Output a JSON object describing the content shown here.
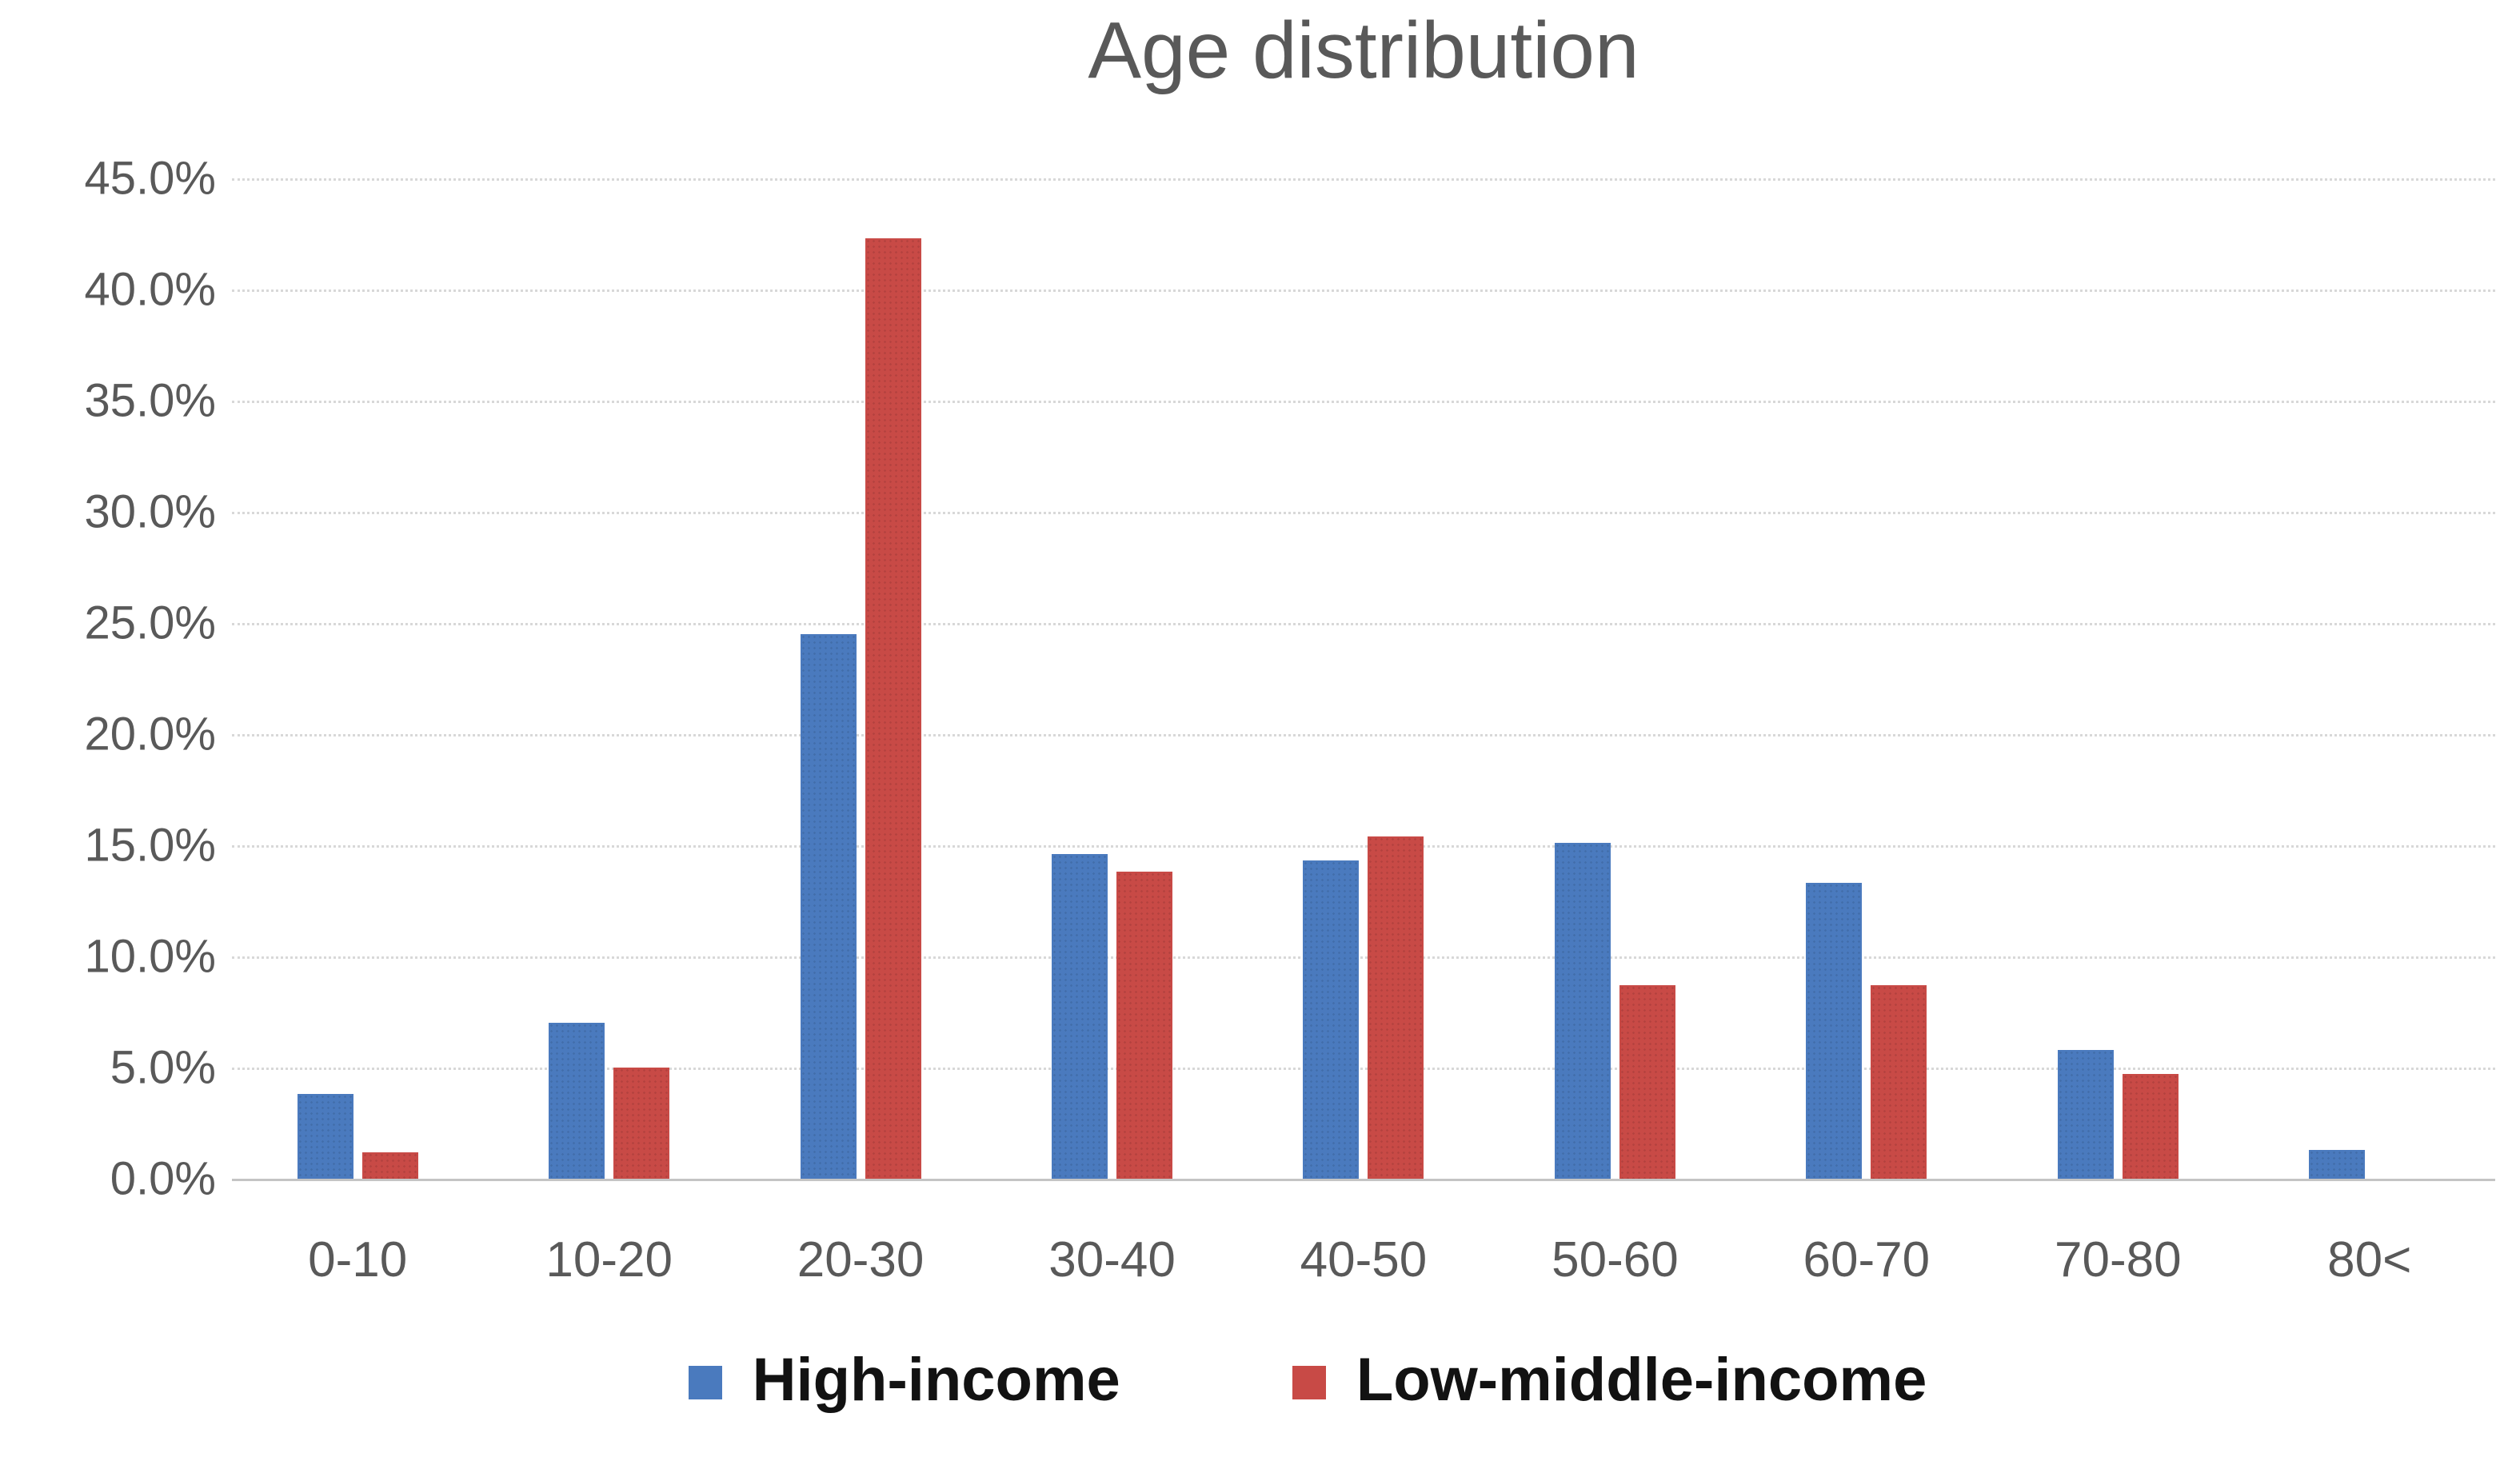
{
  "title": "Age distribution",
  "colors": {
    "high_income": "#4A7ABE",
    "low_middle_income": "#C84A46",
    "gridline": "#D8D8D8",
    "axis_baseline": "#C4C4C4",
    "axis_text": "#595959",
    "legend_text": "#121212"
  },
  "y_axis": {
    "tick_labels": [
      "45.0%",
      "40.0%",
      "35.0%",
      "30.0%",
      "25.0%",
      "20.0%",
      "15.0%",
      "10.0%",
      "5.0%",
      "0.0%"
    ]
  },
  "chart_data": {
    "type": "bar",
    "title": "Age distribution",
    "categories": [
      "0-10",
      "10-20",
      "20-30",
      "30-40",
      "40-50",
      "50-60",
      "60-70",
      "70-80",
      "80<"
    ],
    "series": [
      {
        "name": "High-income",
        "color": "#4A7ABE",
        "values": [
          3.8,
          7.0,
          24.5,
          14.6,
          14.3,
          15.1,
          13.3,
          5.8,
          1.3
        ]
      },
      {
        "name": "Low-middle-income",
        "color": "#C84A46",
        "values": [
          1.2,
          5.0,
          42.3,
          13.8,
          15.4,
          8.7,
          8.7,
          4.7,
          0.0
        ]
      }
    ],
    "xlabel": "",
    "ylabel": "",
    "ylim": [
      0,
      45
    ],
    "y_tick_step": 5,
    "y_tick_format": "0.0%",
    "grid": true,
    "gridline_style": "dotted",
    "legend_position": "bottom"
  },
  "legend": {
    "items": [
      {
        "label": "High-income",
        "color": "#4A7ABE"
      },
      {
        "label": "Low-middle-income",
        "color": "#C84A46"
      }
    ]
  }
}
